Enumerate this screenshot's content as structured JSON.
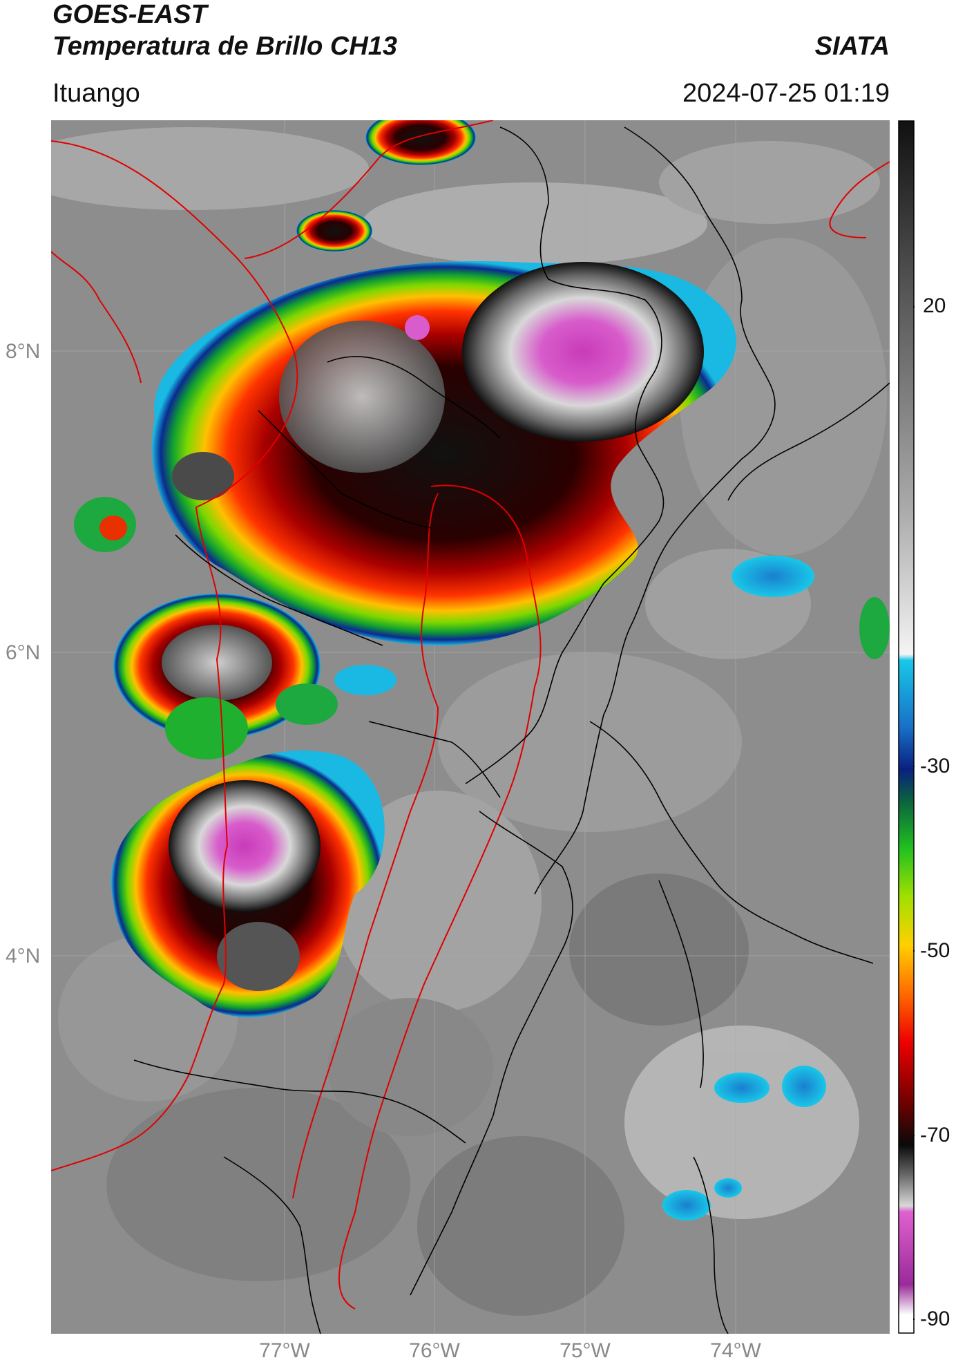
{
  "header": {
    "satellite": "GOES-EAST",
    "product": "Temperatura de Brillo CH13",
    "brand": "SIATA",
    "place": "Ituango",
    "timestamp": "2024-07-25 01:19"
  },
  "map": {
    "lat_labels": [
      "8°N",
      "6°N",
      "4°N"
    ],
    "lon_labels": [
      "77°W",
      "76°W",
      "75°W",
      "74°W"
    ],
    "colors": {
      "background_gray": "#8a8a8a",
      "border_red": "#e00000",
      "border_black": "#000000",
      "magenta": "#d43fc2",
      "cyan": "#19b9e3"
    }
  },
  "colorbar": {
    "tick_labels": [
      "20",
      "-30",
      "-50",
      "-70",
      "-90"
    ]
  }
}
